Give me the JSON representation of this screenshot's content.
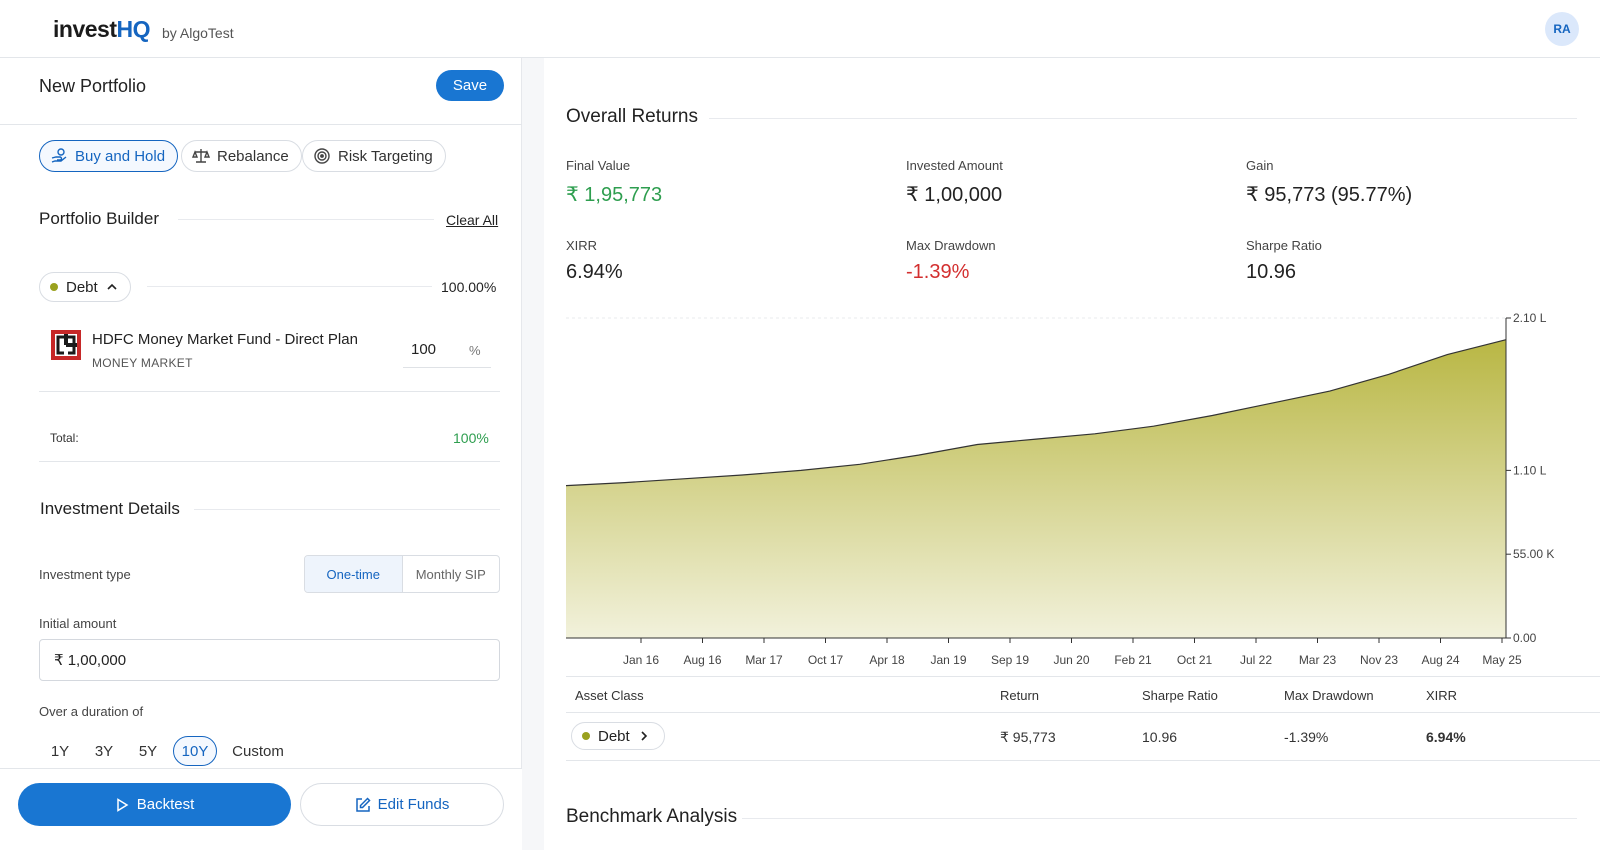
{
  "header": {
    "logo_main": "invest",
    "logo_accent": "HQ",
    "logo_sub": "by AlgoTest",
    "avatar_initials": "RA"
  },
  "left": {
    "title": "New Portfolio",
    "save_label": "Save",
    "strategies": [
      {
        "label": "Buy and Hold",
        "icon": "coins-hand-icon",
        "active": true
      },
      {
        "label": "Rebalance",
        "icon": "scale-icon",
        "active": false
      },
      {
        "label": "Risk Targeting",
        "icon": "target-icon",
        "active": false
      }
    ],
    "builder_title": "Portfolio Builder",
    "clear_all": "Clear All",
    "asset_class": {
      "label": "Debt",
      "percent": "100.00%",
      "color": "#9aa11e"
    },
    "fund": {
      "name": "HDFC Money Market Fund - Direct Plan",
      "category": "MONEY MARKET",
      "allocation": "100",
      "unit": "%"
    },
    "total_label": "Total:",
    "total_value": "100%",
    "details_title": "Investment Details",
    "investment_type_label": "Investment type",
    "investment_types": [
      "One-time",
      "Monthly SIP"
    ],
    "initial_amount_label": "Initial amount",
    "initial_amount": "₹ 1,00,000",
    "duration_label": "Over a duration of",
    "durations": [
      "1Y",
      "3Y",
      "5Y",
      "10Y",
      "Custom"
    ],
    "selected_duration": "10Y",
    "backtest_label": "Backtest",
    "edit_funds_label": "Edit Funds"
  },
  "right": {
    "overall_title": "Overall Returns",
    "stats": {
      "final_value_label": "Final Value",
      "final_value": "₹ 1,95,773",
      "invested_label": "Invested Amount",
      "invested": "₹ 1,00,000",
      "gain_label": "Gain",
      "gain": "₹ 95,773 (95.77%)",
      "xirr_label": "XIRR",
      "xirr": "6.94%",
      "mdd_label": "Max Drawdown",
      "mdd": "-1.39%",
      "sharpe_label": "Sharpe Ratio",
      "sharpe": "10.96"
    },
    "table": {
      "headers": [
        "Asset Class",
        "Return",
        "Sharpe Ratio",
        "Max Drawdown",
        "XIRR"
      ],
      "row": {
        "asset": "Debt",
        "return": "₹ 95,773",
        "sharpe": "10.96",
        "mdd": "-1.39%",
        "xirr": "6.94%"
      }
    },
    "benchmark_title": "Benchmark Analysis"
  },
  "chart_data": {
    "type": "area",
    "x_tick_labels": [
      "Jan 16",
      "Aug 16",
      "Mar 17",
      "Oct 17",
      "Apr 18",
      "Jan 19",
      "Sep 19",
      "Jun 20",
      "Feb 21",
      "Oct 21",
      "Jul 22",
      "Mar 23",
      "Nov 23",
      "Aug 24",
      "May 25"
    ],
    "y_tick_labels": [
      "2.10 L",
      "1.10 L",
      "55.00 K",
      "0.00"
    ],
    "y_ticks": [
      210000,
      110000,
      55000,
      0
    ],
    "ylim": [
      0,
      210000
    ],
    "series": [
      {
        "values": [
          100000,
          102000,
          104500,
          107000,
          110000,
          114000,
          120000,
          127000,
          130500,
          134000,
          139000,
          146000,
          154000,
          162000,
          173000,
          186000,
          195773
        ]
      }
    ],
    "color": "#b5b33a",
    "grid": false
  }
}
